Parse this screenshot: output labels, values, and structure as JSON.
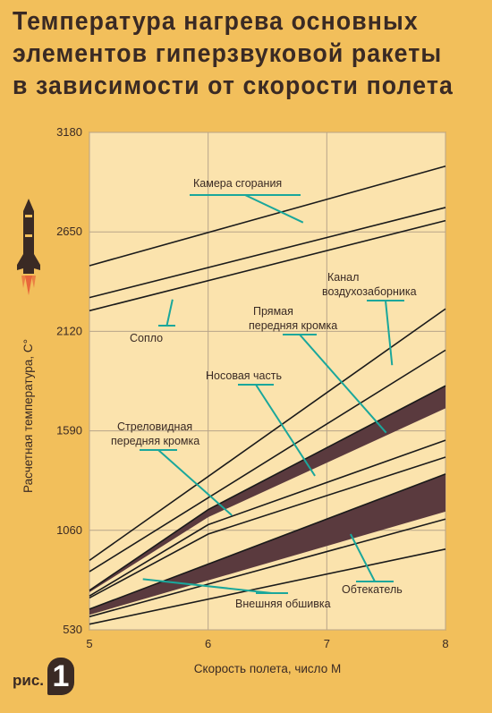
{
  "title_lines": [
    "Температура нагрева основных",
    "элементов гиперзвуковой ракеты",
    "в зависимости от скорости полета"
  ],
  "figure": {
    "prefix": "рис.",
    "number": "1"
  },
  "colors": {
    "plot_bg": "#fbe3ad",
    "line": "#1a1a1a",
    "band": "#5a3a3e",
    "leader": "#1aa79b",
    "text": "#3a2a24"
  },
  "chart_data": {
    "type": "line",
    "xlabel": "Скорость полета, число М",
    "ylabel": "Расчетная температура, С°",
    "xlim": [
      5,
      8
    ],
    "ylim": [
      530,
      3180
    ],
    "x_ticks": [
      "5",
      "6",
      "7",
      "8"
    ],
    "y_ticks": [
      "530",
      "1060",
      "1590",
      "2120",
      "2650",
      "3180"
    ],
    "x_tick_values": [
      5,
      6,
      7,
      8
    ],
    "y_tick_values": [
      530,
      1060,
      1590,
      2120,
      2650,
      3180
    ],
    "grid": true,
    "series": [
      {
        "name": "Камера сгорания",
        "x": [
          5,
          8
        ],
        "y": [
          2470,
          3000
        ]
      },
      {
        "x": [
          5,
          8
        ],
        "y": [
          2300,
          2780
        ]
      },
      {
        "x": [
          5,
          8
        ],
        "y": [
          2230,
          2710
        ]
      },
      {
        "x": [
          5,
          8
        ],
        "y": [
          900,
          2240
        ]
      },
      {
        "x": [
          5,
          8
        ],
        "y": [
          840,
          2020
        ]
      },
      {
        "x": [
          5,
          6,
          8
        ],
        "y": [
          740,
          1170,
          1830
        ],
        "band_bottom": [
          730,
          1130,
          1710
        ]
      },
      {
        "x": [
          5,
          6,
          8
        ],
        "y": [
          710,
          1090,
          1540
        ]
      },
      {
        "x": [
          5,
          6,
          8
        ],
        "y": [
          700,
          1040,
          1450
        ]
      },
      {
        "x": [
          5,
          8
        ],
        "y": [
          640,
          1360
        ],
        "band_bottom": [
          610,
          1160
        ]
      },
      {
        "x": [
          5,
          8
        ],
        "y": [
          600,
          1120
        ]
      },
      {
        "x": [
          5,
          8
        ],
        "y": [
          560,
          960
        ]
      }
    ],
    "annotations": [
      {
        "text": "Камера сгорания",
        "arrow_to": [
          6.8,
          2700
        ]
      },
      {
        "text": "Сопло",
        "arrow_to": [
          5.7,
          2290
        ]
      },
      {
        "text": "Канал воздухозаборника",
        "arrow_to": [
          7.55,
          1940
        ]
      },
      {
        "text": "Прямая передняя кромка",
        "arrow_to": [
          7.5,
          1580
        ]
      },
      {
        "text": "Носовая часть",
        "arrow_to": [
          6.9,
          1350
        ]
      },
      {
        "text": "Стреловидная передняя кромка",
        "arrow_to": [
          6.2,
          1140
        ]
      },
      {
        "text": "Обтекатель",
        "arrow_to": [
          7.2,
          1040
        ]
      },
      {
        "text": "Внешняя обшивка",
        "arrow_to": [
          5.45,
          800
        ]
      }
    ]
  }
}
